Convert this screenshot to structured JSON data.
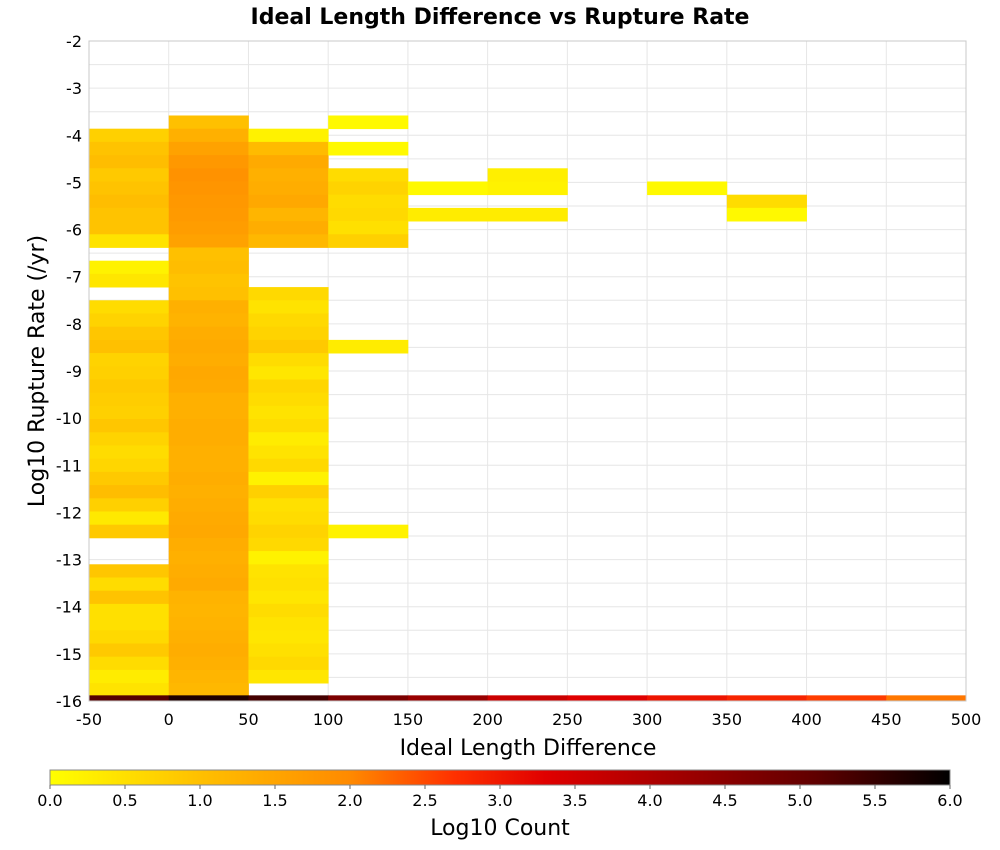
{
  "chart_data": {
    "type": "heatmap",
    "title": "Ideal Length Difference vs Rupture Rate",
    "xlabel": "Ideal Length Difference",
    "ylabel": "Log10 Rupture Rate (/yr)",
    "xlim": [
      -50,
      500
    ],
    "ylim": [
      -16,
      -2
    ],
    "x_ticks": [
      "-50",
      "0",
      "50",
      "100",
      "150",
      "200",
      "250",
      "300",
      "350",
      "400",
      "450",
      "500"
    ],
    "y_ticks": [
      "-2",
      "-3",
      "-4",
      "-5",
      "-6",
      "-7",
      "-8",
      "-9",
      "-10",
      "-11",
      "-12",
      "-13",
      "-14",
      "-15",
      "-16"
    ],
    "x_bin_width": 50,
    "y_bin_height": 0.28,
    "grid": true,
    "colorbar": {
      "label": "Log10 Count",
      "min": 0.0,
      "max": 6.0,
      "ticks": [
        "0.0",
        "0.5",
        "1.0",
        "1.5",
        "2.0",
        "2.5",
        "3.0",
        "3.5",
        "4.0",
        "4.5",
        "5.0",
        "5.5",
        "6.0"
      ]
    },
    "columns": [
      {
        "x0": -50,
        "cells": [
          [
            -4.14,
            0.75
          ],
          [
            -4.42,
            0.95
          ],
          [
            -4.7,
            1.05
          ],
          [
            -4.98,
            0.85
          ],
          [
            -5.26,
            0.95
          ],
          [
            -5.54,
            1.05
          ],
          [
            -5.82,
            0.95
          ],
          [
            -6.1,
            0.95
          ],
          [
            -6.38,
            0.45
          ],
          [
            -6.94,
            0.2
          ],
          [
            -7.22,
            0.4
          ],
          [
            -7.78,
            0.55
          ],
          [
            -8.06,
            0.7
          ],
          [
            -8.34,
            0.9
          ],
          [
            -8.62,
            1.0
          ],
          [
            -8.9,
            0.7
          ],
          [
            -9.18,
            0.75
          ],
          [
            -9.46,
            0.85
          ],
          [
            -9.74,
            0.8
          ],
          [
            -10.02,
            0.75
          ],
          [
            -10.3,
            0.9
          ],
          [
            -10.58,
            0.7
          ],
          [
            -10.86,
            0.55
          ],
          [
            -11.14,
            0.65
          ],
          [
            -11.42,
            0.85
          ],
          [
            -11.7,
            1.05
          ],
          [
            -11.98,
            0.75
          ],
          [
            -12.26,
            0.35
          ],
          [
            -12.54,
            0.85
          ],
          [
            -13.38,
            0.9
          ],
          [
            -13.66,
            0.55
          ],
          [
            -13.94,
            0.95
          ],
          [
            -14.22,
            0.5
          ],
          [
            -14.5,
            0.5
          ],
          [
            -14.78,
            0.6
          ],
          [
            -15.06,
            0.85
          ],
          [
            -15.34,
            0.55
          ],
          [
            -15.62,
            0.3
          ],
          [
            -15.9,
            0.45
          ]
        ]
      },
      {
        "x0": 0,
        "cells": [
          [
            -3.86,
            1.0
          ],
          [
            -4.14,
            1.3
          ],
          [
            -4.42,
            1.55
          ],
          [
            -4.7,
            1.75
          ],
          [
            -4.98,
            1.85
          ],
          [
            -5.26,
            1.8
          ],
          [
            -5.54,
            1.75
          ],
          [
            -5.82,
            1.7
          ],
          [
            -6.1,
            1.65
          ],
          [
            -6.38,
            1.55
          ],
          [
            -6.66,
            1.0
          ],
          [
            -6.94,
            1.05
          ],
          [
            -7.22,
            0.95
          ],
          [
            -7.5,
            1.0
          ],
          [
            -7.78,
            1.3
          ],
          [
            -8.06,
            1.25
          ],
          [
            -8.34,
            1.35
          ],
          [
            -8.62,
            1.4
          ],
          [
            -8.9,
            1.35
          ],
          [
            -9.18,
            1.45
          ],
          [
            -9.46,
            1.4
          ],
          [
            -9.74,
            1.3
          ],
          [
            -10.02,
            1.3
          ],
          [
            -10.3,
            1.35
          ],
          [
            -10.58,
            1.35
          ],
          [
            -10.86,
            1.3
          ],
          [
            -11.14,
            1.3
          ],
          [
            -11.42,
            1.35
          ],
          [
            -11.7,
            1.3
          ],
          [
            -11.98,
            1.35
          ],
          [
            -12.26,
            1.4
          ],
          [
            -12.54,
            1.45
          ],
          [
            -12.82,
            1.35
          ],
          [
            -13.1,
            1.3
          ],
          [
            -13.38,
            1.35
          ],
          [
            -13.66,
            1.4
          ],
          [
            -13.94,
            1.25
          ],
          [
            -14.22,
            1.2
          ],
          [
            -14.5,
            1.25
          ],
          [
            -14.78,
            1.3
          ],
          [
            -15.06,
            1.35
          ],
          [
            -15.34,
            1.3
          ],
          [
            -15.62,
            1.2
          ],
          [
            -15.9,
            1.15
          ]
        ]
      },
      {
        "x0": 50,
        "cells": [
          [
            -4.14,
            0.2
          ],
          [
            -4.42,
            1.1
          ],
          [
            -4.7,
            1.4
          ],
          [
            -4.98,
            1.3
          ],
          [
            -5.26,
            1.35
          ],
          [
            -5.54,
            1.45
          ],
          [
            -5.82,
            1.2
          ],
          [
            -6.1,
            1.35
          ],
          [
            -6.38,
            1.15
          ],
          [
            -7.5,
            0.6
          ],
          [
            -7.78,
            0.45
          ],
          [
            -8.06,
            0.6
          ],
          [
            -8.34,
            0.7
          ],
          [
            -8.62,
            0.85
          ],
          [
            -8.9,
            0.55
          ],
          [
            -9.18,
            0.4
          ],
          [
            -9.46,
            0.65
          ],
          [
            -9.74,
            0.55
          ],
          [
            -10.02,
            0.45
          ],
          [
            -10.3,
            0.55
          ],
          [
            -10.58,
            0.3
          ],
          [
            -10.86,
            0.45
          ],
          [
            -11.14,
            0.6
          ],
          [
            -11.42,
            0.2
          ],
          [
            -11.7,
            0.75
          ],
          [
            -11.98,
            0.5
          ],
          [
            -12.26,
            0.55
          ],
          [
            -12.54,
            0.7
          ],
          [
            -12.82,
            0.6
          ],
          [
            -13.1,
            0.2
          ],
          [
            -13.38,
            0.45
          ],
          [
            -13.66,
            0.5
          ],
          [
            -13.94,
            0.4
          ],
          [
            -14.22,
            0.55
          ],
          [
            -14.5,
            0.45
          ],
          [
            -14.78,
            0.4
          ],
          [
            -15.06,
            0.5
          ],
          [
            -15.34,
            0.6
          ],
          [
            -15.62,
            0.4
          ]
        ]
      },
      {
        "x0": 100,
        "cells": [
          [
            -3.86,
            0.1
          ],
          [
            -4.42,
            0.1
          ],
          [
            -4.98,
            0.55
          ],
          [
            -5.26,
            0.7
          ],
          [
            -5.54,
            0.55
          ],
          [
            -5.82,
            0.6
          ],
          [
            -6.1,
            0.5
          ],
          [
            -6.38,
            0.75
          ],
          [
            -8.62,
            0.3
          ],
          [
            -12.54,
            0.2
          ]
        ]
      },
      {
        "x0": 150,
        "cells": [
          [
            -5.26,
            0.1
          ],
          [
            -5.82,
            0.3
          ]
        ]
      },
      {
        "x0": 200,
        "cells": [
          [
            -4.98,
            0.25
          ],
          [
            -5.26,
            0.2
          ],
          [
            -5.82,
            0.3
          ]
        ]
      },
      {
        "x0": 300,
        "cells": [
          [
            -5.26,
            0.1
          ]
        ]
      },
      {
        "x0": 350,
        "cells": [
          [
            -5.54,
            0.55
          ],
          [
            -5.82,
            0.1
          ]
        ]
      }
    ],
    "bottom_row": {
      "y0": -16.0,
      "y1": -15.88,
      "values": [
        5.2,
        5.7,
        5.35,
        4.7,
        4.3,
        3.6,
        3.3,
        3.05,
        2.85,
        2.6,
        2.15
      ]
    }
  }
}
